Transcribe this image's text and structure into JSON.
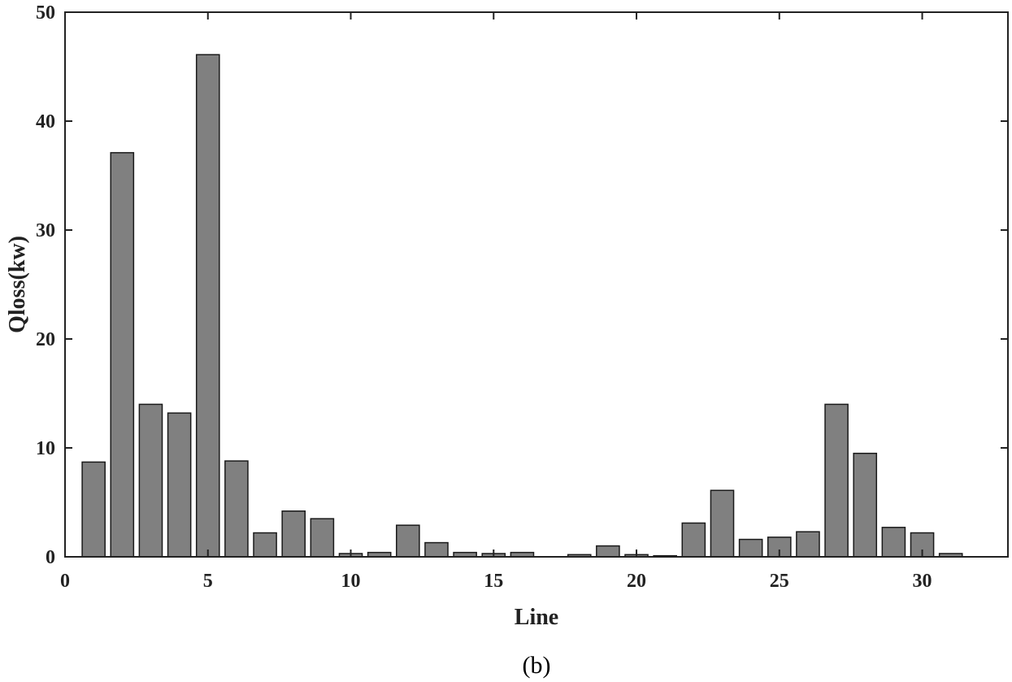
{
  "chart_data": {
    "type": "bar",
    "title": "",
    "xlabel": "Line",
    "ylabel": "Qloss(kw)",
    "xlim": [
      0,
      33
    ],
    "ylim": [
      0,
      50
    ],
    "xticks": [
      0,
      5,
      10,
      15,
      20,
      25,
      30
    ],
    "yticks": [
      0,
      10,
      20,
      30,
      40,
      50
    ],
    "grid": false,
    "bar_color": "#808080",
    "bar_edge_color": "#1a1a1a",
    "x": [
      1,
      2,
      3,
      4,
      5,
      6,
      7,
      8,
      9,
      10,
      11,
      12,
      13,
      14,
      15,
      16,
      17,
      18,
      19,
      20,
      21,
      22,
      23,
      24,
      25,
      26,
      27,
      28,
      29,
      30,
      31,
      32
    ],
    "values": [
      8.7,
      37.1,
      14.0,
      13.2,
      46.1,
      8.8,
      2.2,
      4.2,
      3.5,
      0.3,
      0.4,
      2.9,
      1.3,
      0.4,
      0.3,
      0.4,
      0.0,
      0.2,
      1.0,
      0.2,
      0.1,
      3.1,
      6.1,
      1.6,
      1.8,
      2.3,
      14.0,
      9.5,
      2.7,
      2.2,
      0.3,
      0.0
    ]
  },
  "caption": "(b)"
}
